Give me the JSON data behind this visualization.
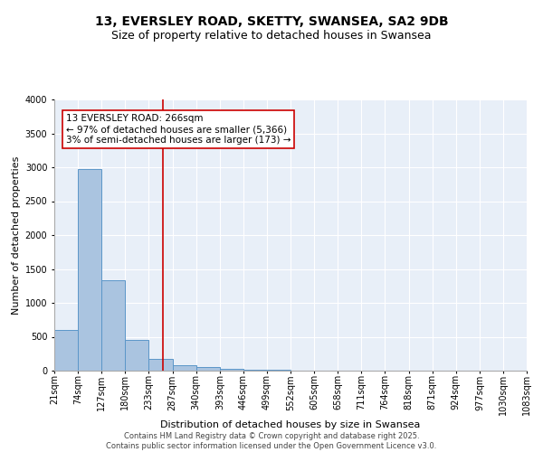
{
  "title1": "13, EVERSLEY ROAD, SKETTY, SWANSEA, SA2 9DB",
  "title2": "Size of property relative to detached houses in Swansea",
  "xlabel": "Distribution of detached houses by size in Swansea",
  "ylabel": "Number of detached properties",
  "bin_labels": [
    "21sqm",
    "74sqm",
    "127sqm",
    "180sqm",
    "233sqm",
    "287sqm",
    "340sqm",
    "393sqm",
    "446sqm",
    "499sqm",
    "552sqm",
    "605sqm",
    "658sqm",
    "711sqm",
    "764sqm",
    "818sqm",
    "871sqm",
    "924sqm",
    "977sqm",
    "1030sqm",
    "1083sqm"
  ],
  "bin_edges": [
    21,
    74,
    127,
    180,
    233,
    287,
    340,
    393,
    446,
    499,
    552,
    605,
    658,
    711,
    764,
    818,
    871,
    924,
    977,
    1030,
    1083
  ],
  "bar_heights": [
    600,
    2980,
    1340,
    450,
    175,
    75,
    50,
    25,
    15,
    10,
    5,
    5,
    5,
    5,
    5,
    5,
    5,
    5,
    5
  ],
  "bar_color": "#aac4e0",
  "bar_edge_color": "#5b96c8",
  "bg_color": "#e8eff8",
  "grid_color": "#ffffff",
  "red_line_x": 266,
  "annotation_title": "13 EVERSLEY ROAD: 266sqm",
  "annotation_line1": "← 97% of detached houses are smaller (5,366)",
  "annotation_line2": "3% of semi-detached houses are larger (173) →",
  "annotation_box_color": "#ffffff",
  "annotation_box_edge": "#cc0000",
  "red_line_color": "#cc0000",
  "ylim": [
    0,
    4000
  ],
  "yticks": [
    0,
    500,
    1000,
    1500,
    2000,
    2500,
    3000,
    3500,
    4000
  ],
  "footer1": "Contains HM Land Registry data © Crown copyright and database right 2025.",
  "footer2": "Contains public sector information licensed under the Open Government Licence v3.0.",
  "title_fontsize": 10,
  "subtitle_fontsize": 9,
  "axis_label_fontsize": 8,
  "tick_fontsize": 7,
  "annotation_fontsize": 7.5,
  "footer_fontsize": 6
}
